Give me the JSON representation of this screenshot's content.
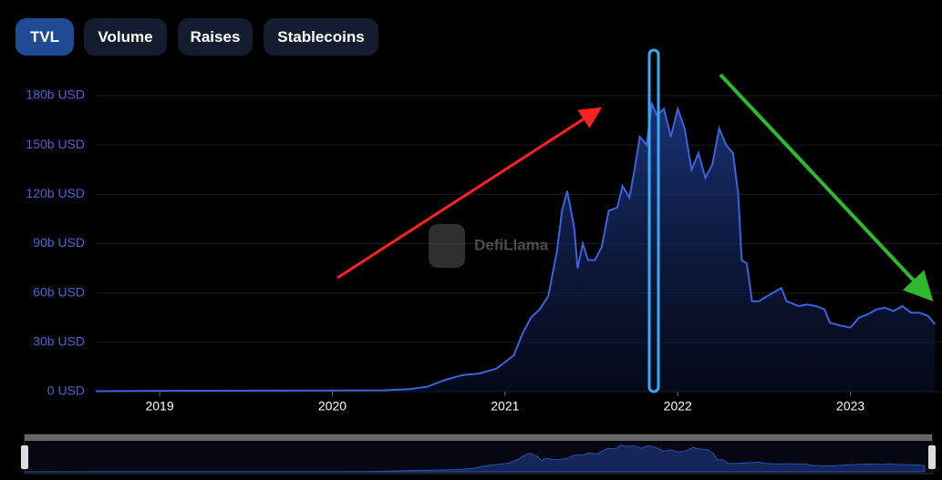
{
  "tabs": [
    "TVL",
    "Volume",
    "Raises",
    "Stablecoins"
  ],
  "chart_data": {
    "type": "area",
    "watermark": "DefiLlama",
    "color": "#3b63e0",
    "x": [
      2018.63,
      2019.0,
      2019.5,
      2020.0,
      2020.3,
      2020.45,
      2020.55,
      2020.65,
      2020.75,
      2020.85,
      2020.95,
      2021.0,
      2021.05,
      2021.1,
      2021.15,
      2021.2,
      2021.25,
      2021.3,
      2021.33,
      2021.36,
      2021.4,
      2021.42,
      2021.45,
      2021.48,
      2021.52,
      2021.56,
      2021.6,
      2021.65,
      2021.68,
      2021.72,
      2021.75,
      2021.78,
      2021.82,
      2021.85,
      2021.88,
      2021.92,
      2021.96,
      2022.0,
      2022.04,
      2022.08,
      2022.12,
      2022.16,
      2022.2,
      2022.24,
      2022.28,
      2022.32,
      2022.35,
      2022.37,
      2022.4,
      2022.43,
      2022.47,
      2022.5,
      2022.55,
      2022.6,
      2022.63,
      2022.7,
      2022.75,
      2022.8,
      2022.85,
      2022.88,
      2022.95,
      2023.0,
      2023.05,
      2023.1,
      2023.15,
      2023.2,
      2023.25,
      2023.3,
      2023.35,
      2023.4,
      2023.45,
      2023.49
    ],
    "values": [
      0.3,
      0.5,
      0.6,
      0.7,
      0.8,
      1.5,
      3,
      7,
      10,
      11,
      14,
      18,
      22,
      35,
      45,
      50,
      58,
      85,
      110,
      122,
      100,
      75,
      90,
      80,
      80,
      88,
      110,
      112,
      125,
      118,
      135,
      155,
      150,
      175,
      168,
      172,
      155,
      172,
      160,
      135,
      145,
      130,
      138,
      160,
      150,
      145,
      120,
      80,
      78,
      55,
      55,
      57,
      60,
      63,
      55,
      52,
      53,
      52,
      50,
      42,
      40,
      39,
      45,
      47,
      50,
      51,
      49,
      52,
      48,
      48,
      46,
      41
    ],
    "xlim": [
      2018.63,
      2023.53
    ],
    "xticks": [
      2019,
      2020,
      2021,
      2022,
      2023
    ],
    "ylim": [
      0,
      180
    ],
    "yticks": [
      {
        "value": 0,
        "label": "0 USD"
      },
      {
        "value": 30,
        "label": "30b USD"
      },
      {
        "value": 60,
        "label": "60b USD"
      },
      {
        "value": 90,
        "label": "90b USD"
      },
      {
        "value": 120,
        "label": "120b USD"
      },
      {
        "value": 150,
        "label": "150b USD"
      },
      {
        "value": 180,
        "label": "180b USD"
      }
    ],
    "grid": true
  }
}
